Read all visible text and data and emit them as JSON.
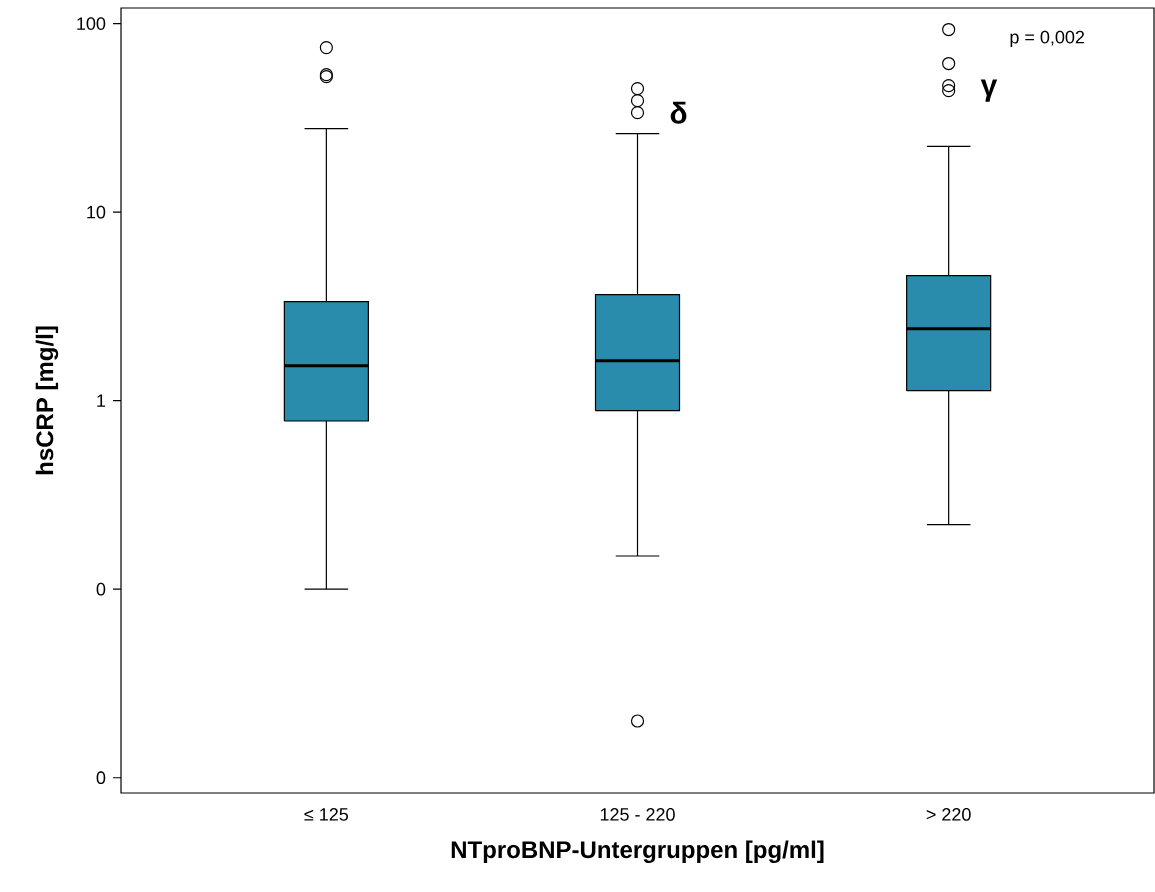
{
  "chart_data": {
    "type": "box",
    "xlabel": "NTproBNP-Untergruppen [pg/ml]",
    "ylabel": "hsCRP [mg/l]",
    "categories": [
      "≤ 125",
      "125 - 220",
      "> 220"
    ],
    "color": "#2a8cad",
    "log": true,
    "ylim": [
      0.0083,
      121
    ],
    "yticks": [
      {
        "value": 0.01,
        "label": "0"
      },
      {
        "value": 0.1,
        "label": "0"
      },
      1,
      10,
      100
    ],
    "boxes": [
      {
        "low": 0.1,
        "q1": 0.78,
        "median": 1.53,
        "q3": 3.35,
        "high": 27.7,
        "outliers": [
          74.6,
          53.6,
          52.3
        ]
      },
      {
        "low": 0.15,
        "q1": 0.885,
        "median": 1.63,
        "q3": 3.65,
        "high": 26.1,
        "outliers": [
          45.2,
          39,
          33.7,
          0.02
        ]
      },
      {
        "low": 0.22,
        "q1": 1.13,
        "median": 2.41,
        "q3": 4.6,
        "high": 22.3,
        "outliers": [
          93,
          61.4,
          46.9,
          44.1
        ]
      }
    ],
    "annotations": [
      "p = 0,002",
      "δ",
      "γ"
    ],
    "grid": false
  }
}
